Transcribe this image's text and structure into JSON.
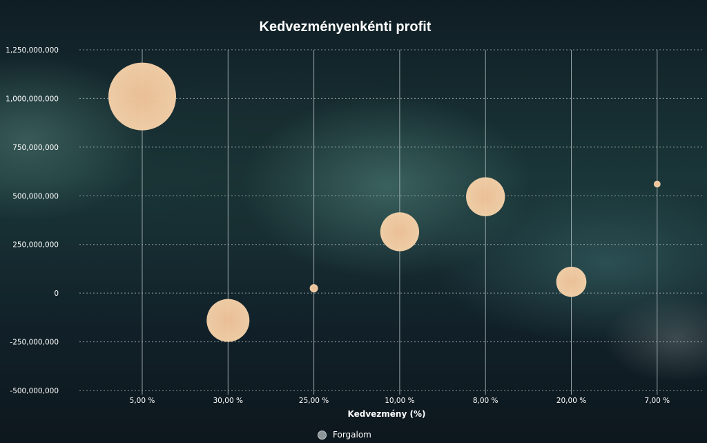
{
  "chart_data": {
    "type": "bubble",
    "title": "Kedvezményenkénti profit",
    "xlabel": "Kedvezmény (%)",
    "ylabel": "",
    "categories": [
      "5,00 %",
      "30,00 %",
      "25,00 %",
      "10,00 %",
      "8,00 %",
      "20,00 %",
      "7,00 %"
    ],
    "ylim": [
      -500000000,
      1250000000
    ],
    "yticks": [
      -500000000,
      -250000000,
      0,
      250000000,
      500000000,
      750000000,
      1000000000,
      1250000000
    ],
    "ytick_labels": [
      "-500,000,000",
      "-250,000,000",
      "0",
      "250,000,000",
      "500,000,000",
      "750,000,000",
      "1,000,000,000",
      "1,250,000,000"
    ],
    "grid": {
      "horizontal": "dotted",
      "vertical": "solid"
    },
    "legend": {
      "position": "bottom-center",
      "items": [
        "Forgalom"
      ]
    },
    "colors": {
      "bubble": "#f6d2a9",
      "bubble_center": "#f2c49a",
      "grid": "#b9c3c6",
      "text": "#ffffff",
      "legend_marker": "#8c9498"
    },
    "series": [
      {
        "name": "Forgalom",
        "points": [
          {
            "x": "5,00 %",
            "y": 1010000000,
            "size": 100
          },
          {
            "x": "30,00 %",
            "y": -140000000,
            "size": 40
          },
          {
            "x": "25,00 %",
            "y": 25000000,
            "size": 1.5
          },
          {
            "x": "10,00 %",
            "y": 315000000,
            "size": 33
          },
          {
            "x": "8,00 %",
            "y": 495000000,
            "size": 33
          },
          {
            "x": "20,00 %",
            "y": 58000000,
            "size": 20
          },
          {
            "x": "7,00 %",
            "y": 560000000,
            "size": 1
          }
        ]
      }
    ]
  }
}
